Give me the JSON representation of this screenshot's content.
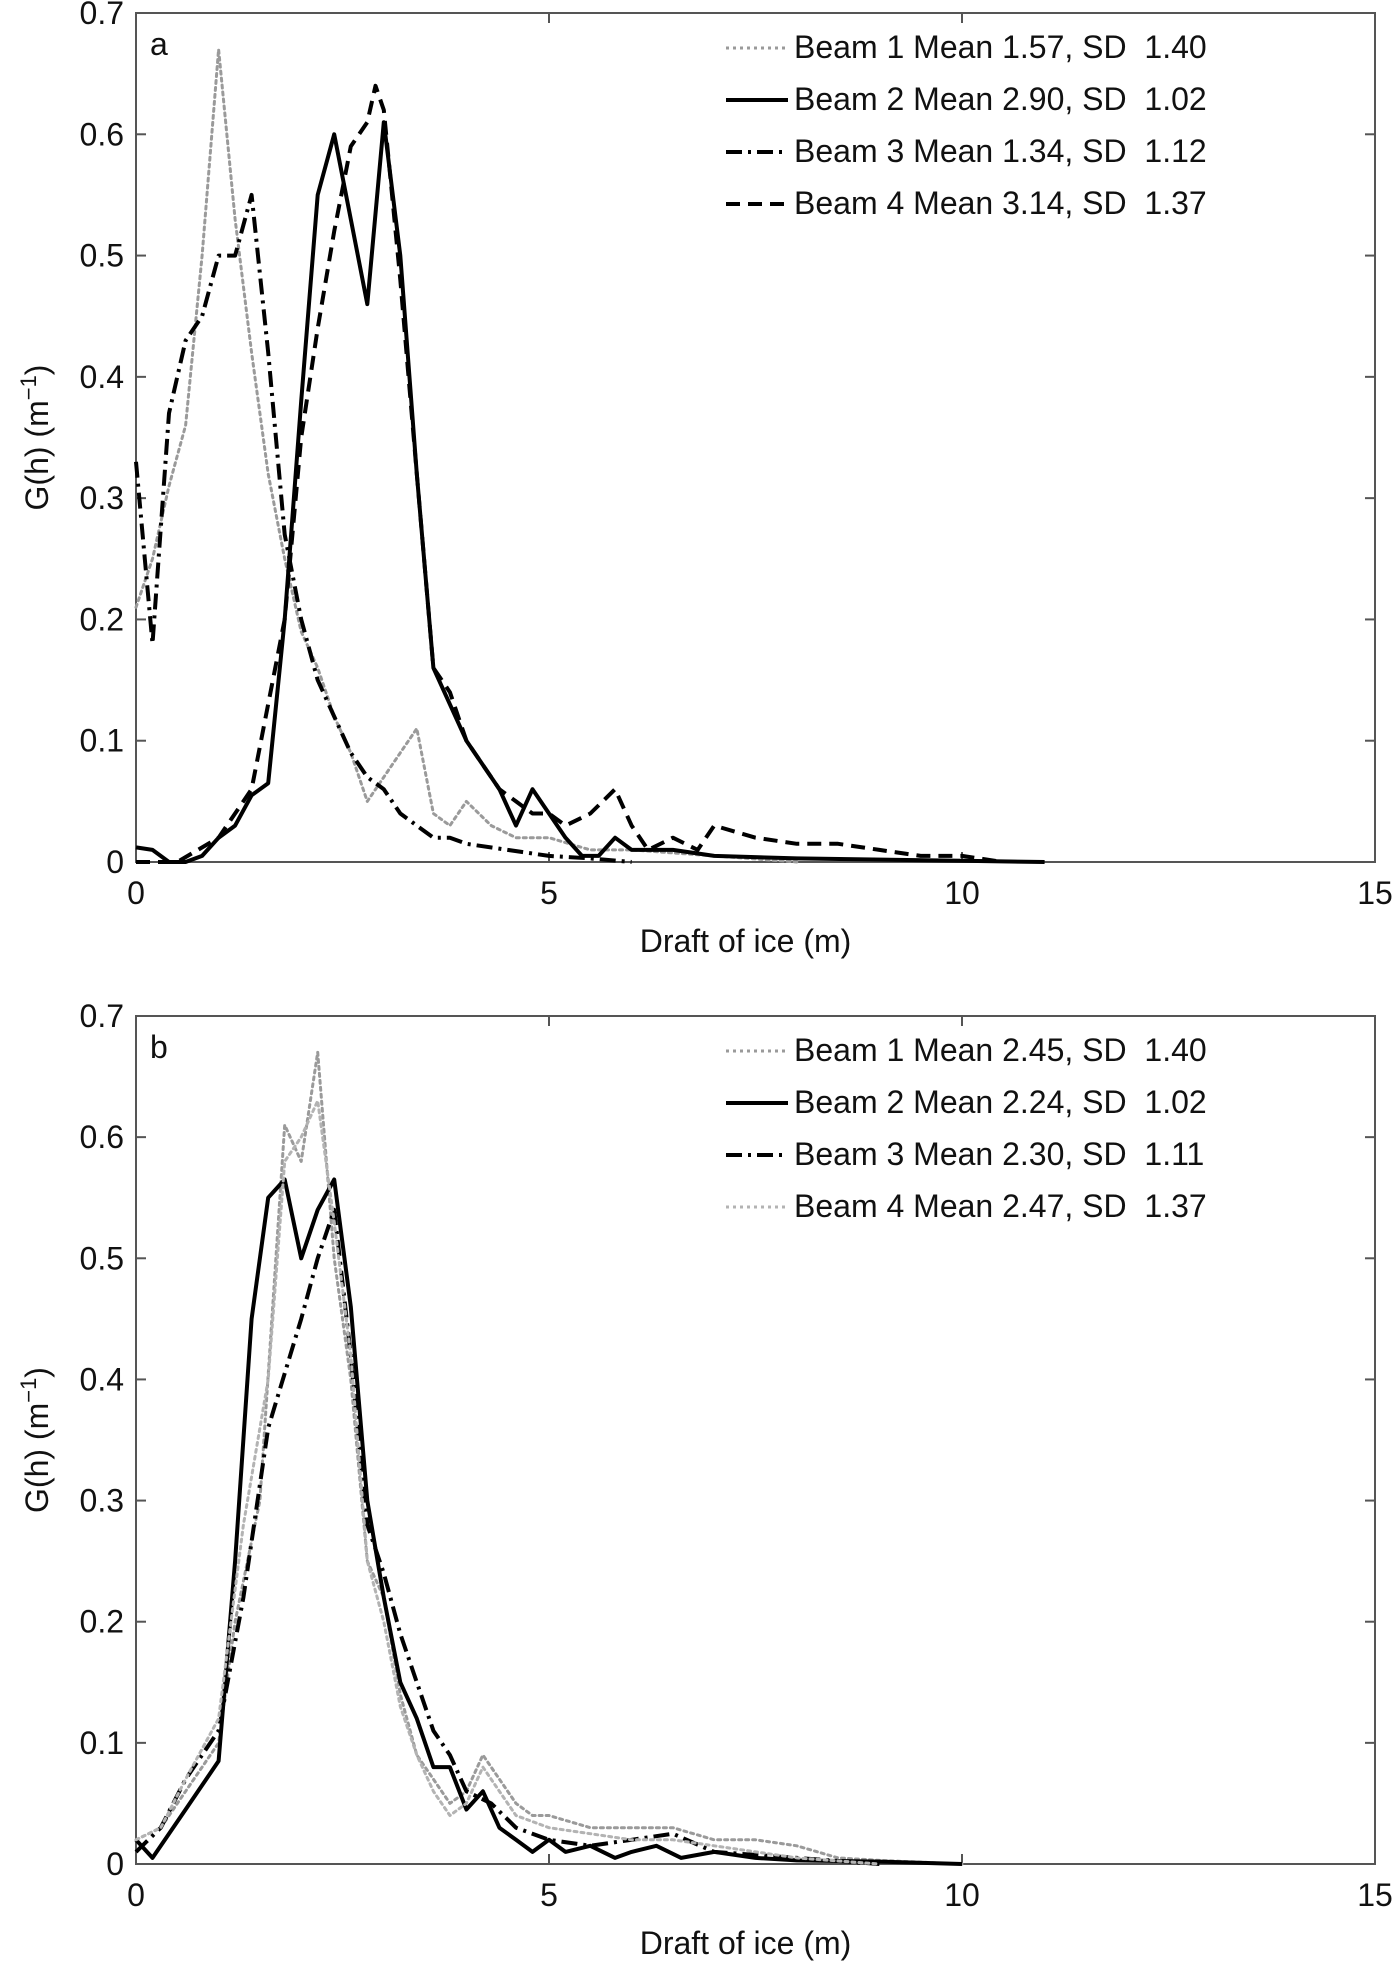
{
  "chart_data": [
    {
      "type": "line",
      "panel_label": "a",
      "xlabel": "Draft of ice (m)",
      "ylabel": "G(h) (m",
      "ylabel_sup": "−1",
      "ylabel_close": ")",
      "xlim": [
        0,
        15
      ],
      "ylim": [
        0,
        0.7
      ],
      "xticks": [
        "0",
        "5",
        "10",
        "15"
      ],
      "yticks": [
        "0",
        "0.1",
        "0.2",
        "0.3",
        "0.4",
        "0.5",
        "0.6",
        "0.7"
      ],
      "grid": false,
      "legend_position": "top-right",
      "series": [
        {
          "name": "Beam 1 Mean 1.57, SD  1.40",
          "style": "dotted",
          "color": "#9a9a9a",
          "x": [
            0,
            0.2,
            0.4,
            0.6,
            0.8,
            1.0,
            1.2,
            1.4,
            1.6,
            1.8,
            2.0,
            2.2,
            2.4,
            2.6,
            2.8,
            3.0,
            3.2,
            3.4,
            3.6,
            3.8,
            4.0,
            4.3,
            4.6,
            5.0,
            5.5,
            6.0,
            7.0,
            8.0
          ],
          "y": [
            0.21,
            0.25,
            0.31,
            0.36,
            0.5,
            0.67,
            0.53,
            0.42,
            0.32,
            0.25,
            0.19,
            0.16,
            0.12,
            0.09,
            0.05,
            0.07,
            0.09,
            0.11,
            0.04,
            0.03,
            0.05,
            0.03,
            0.02,
            0.02,
            0.01,
            0.01,
            0.005,
            0.0
          ]
        },
        {
          "name": "Beam 2 Mean 2.90, SD  1.02",
          "style": "solid",
          "color": "#000000",
          "x": [
            0,
            0.2,
            0.4,
            0.6,
            0.8,
            1.0,
            1.2,
            1.4,
            1.6,
            1.8,
            2.0,
            2.2,
            2.4,
            2.6,
            2.8,
            3.0,
            3.2,
            3.4,
            3.6,
            3.8,
            4.0,
            4.2,
            4.4,
            4.6,
            4.8,
            5.0,
            5.2,
            5.4,
            5.6,
            5.8,
            6.0,
            6.5,
            7.0,
            8.0,
            10.0,
            11.0
          ],
          "y": [
            0.012,
            0.01,
            0.0,
            0.0,
            0.005,
            0.02,
            0.03,
            0.055,
            0.065,
            0.2,
            0.38,
            0.55,
            0.6,
            0.53,
            0.46,
            0.61,
            0.5,
            0.32,
            0.16,
            0.13,
            0.1,
            0.08,
            0.06,
            0.03,
            0.06,
            0.04,
            0.02,
            0.005,
            0.005,
            0.02,
            0.01,
            0.01,
            0.005,
            0.003,
            0.001,
            0.0
          ]
        },
        {
          "name": "Beam 3 Mean 1.34, SD  1.12",
          "style": "dashdot",
          "color": "#000000",
          "x": [
            0,
            0.2,
            0.4,
            0.6,
            0.8,
            1.0,
            1.2,
            1.4,
            1.6,
            1.8,
            2.0,
            2.2,
            2.4,
            2.6,
            2.8,
            3.0,
            3.2,
            3.4,
            3.6,
            3.8,
            4.0,
            4.5,
            5.0,
            5.5,
            6.0
          ],
          "y": [
            0.33,
            0.18,
            0.37,
            0.43,
            0.45,
            0.5,
            0.5,
            0.55,
            0.42,
            0.27,
            0.2,
            0.15,
            0.12,
            0.09,
            0.07,
            0.06,
            0.04,
            0.03,
            0.02,
            0.02,
            0.015,
            0.01,
            0.005,
            0.003,
            0.0
          ]
        },
        {
          "name": "Beam 4 Mean 3.14, SD  1.37",
          "style": "dashed",
          "color": "#000000",
          "x": [
            0,
            0.5,
            1.0,
            1.4,
            1.8,
            2.0,
            2.2,
            2.4,
            2.6,
            2.8,
            2.9,
            3.0,
            3.2,
            3.4,
            3.6,
            3.8,
            4.0,
            4.2,
            4.4,
            4.6,
            4.8,
            5.0,
            5.2,
            5.5,
            5.8,
            6.0,
            6.2,
            6.5,
            6.8,
            7.0,
            7.5,
            8.0,
            8.5,
            9.0,
            9.5,
            10.0,
            10.5
          ],
          "y": [
            0.0,
            0.0,
            0.02,
            0.06,
            0.2,
            0.35,
            0.44,
            0.52,
            0.59,
            0.61,
            0.64,
            0.62,
            0.48,
            0.32,
            0.16,
            0.14,
            0.1,
            0.08,
            0.06,
            0.05,
            0.04,
            0.04,
            0.03,
            0.04,
            0.06,
            0.03,
            0.01,
            0.02,
            0.01,
            0.03,
            0.02,
            0.015,
            0.015,
            0.01,
            0.005,
            0.005,
            0.0
          ]
        }
      ]
    },
    {
      "type": "line",
      "panel_label": "b",
      "xlabel": "Draft of ice (m)",
      "ylabel": "G(h) (m",
      "ylabel_sup": "−1",
      "ylabel_close": ")",
      "xlim": [
        0,
        15
      ],
      "ylim": [
        0,
        0.7
      ],
      "xticks": [
        "0",
        "5",
        "10",
        "15"
      ],
      "yticks": [
        "0",
        "0.1",
        "0.2",
        "0.3",
        "0.4",
        "0.5",
        "0.6",
        "0.7"
      ],
      "grid": false,
      "legend_position": "top-right",
      "series": [
        {
          "name": "Beam 1 Mean 2.45, SD  1.40",
          "style": "dotted",
          "color": "#9a9a9a",
          "x": [
            0,
            0.3,
            0.6,
            1.0,
            1.2,
            1.5,
            1.8,
            2.0,
            2.2,
            2.4,
            2.6,
            2.8,
            3.0,
            3.2,
            3.4,
            3.6,
            3.8,
            4.0,
            4.2,
            4.4,
            4.6,
            4.8,
            5.0,
            5.5,
            6.0,
            6.5,
            7.0,
            7.5,
            8.0,
            8.5,
            9.0,
            10.0
          ],
          "y": [
            0.02,
            0.03,
            0.06,
            0.1,
            0.2,
            0.3,
            0.61,
            0.58,
            0.67,
            0.5,
            0.4,
            0.25,
            0.22,
            0.14,
            0.09,
            0.07,
            0.05,
            0.06,
            0.09,
            0.07,
            0.05,
            0.04,
            0.04,
            0.03,
            0.03,
            0.03,
            0.02,
            0.02,
            0.015,
            0.005,
            0.003,
            0.0
          ]
        },
        {
          "name": "Beam 2 Mean 2.24, SD  1.02",
          "style": "solid",
          "color": "#000000",
          "x": [
            0,
            0.2,
            0.4,
            0.6,
            0.8,
            1.0,
            1.2,
            1.4,
            1.6,
            1.8,
            2.0,
            2.2,
            2.4,
            2.6,
            2.8,
            3.0,
            3.2,
            3.4,
            3.6,
            3.8,
            4.0,
            4.2,
            4.4,
            4.6,
            4.8,
            5.0,
            5.2,
            5.5,
            5.8,
            6.0,
            6.3,
            6.6,
            7.0,
            7.5,
            8.0,
            9.0,
            10.0
          ],
          "y": [
            0.02,
            0.005,
            0.025,
            0.045,
            0.065,
            0.085,
            0.25,
            0.45,
            0.55,
            0.565,
            0.5,
            0.54,
            0.565,
            0.46,
            0.3,
            0.22,
            0.15,
            0.12,
            0.08,
            0.08,
            0.045,
            0.06,
            0.03,
            0.02,
            0.01,
            0.02,
            0.01,
            0.015,
            0.005,
            0.01,
            0.015,
            0.005,
            0.01,
            0.005,
            0.003,
            0.002,
            0.0
          ]
        },
        {
          "name": "Beam 3 Mean 2.30, SD  1.11",
          "style": "dashdot",
          "color": "#000000",
          "x": [
            0,
            0.3,
            0.6,
            1.0,
            1.3,
            1.6,
            2.0,
            2.2,
            2.4,
            2.6,
            2.8,
            3.0,
            3.2,
            3.4,
            3.6,
            3.8,
            4.0,
            4.3,
            4.6,
            5.0,
            5.5,
            6.0,
            6.5,
            7.0,
            8.0,
            9.0
          ],
          "y": [
            0.01,
            0.03,
            0.07,
            0.11,
            0.22,
            0.36,
            0.45,
            0.5,
            0.54,
            0.42,
            0.28,
            0.24,
            0.19,
            0.15,
            0.11,
            0.09,
            0.06,
            0.05,
            0.03,
            0.02,
            0.015,
            0.02,
            0.025,
            0.01,
            0.005,
            0.0
          ]
        },
        {
          "name": "Beam 4 Mean 2.47, SD  1.37",
          "style": "dotted",
          "color": "#b3b3b3",
          "x": [
            0,
            0.3,
            0.6,
            1.0,
            1.3,
            1.6,
            1.8,
            2.0,
            2.2,
            2.4,
            2.6,
            2.8,
            3.0,
            3.2,
            3.4,
            3.6,
            3.8,
            4.0,
            4.2,
            4.4,
            4.6,
            5.0,
            5.5,
            6.0,
            6.5,
            7.0,
            8.0,
            9.0
          ],
          "y": [
            0.02,
            0.03,
            0.07,
            0.12,
            0.28,
            0.4,
            0.58,
            0.6,
            0.63,
            0.53,
            0.42,
            0.25,
            0.2,
            0.13,
            0.09,
            0.06,
            0.04,
            0.05,
            0.08,
            0.06,
            0.04,
            0.03,
            0.025,
            0.02,
            0.02,
            0.015,
            0.005,
            0.0
          ]
        }
      ]
    }
  ]
}
